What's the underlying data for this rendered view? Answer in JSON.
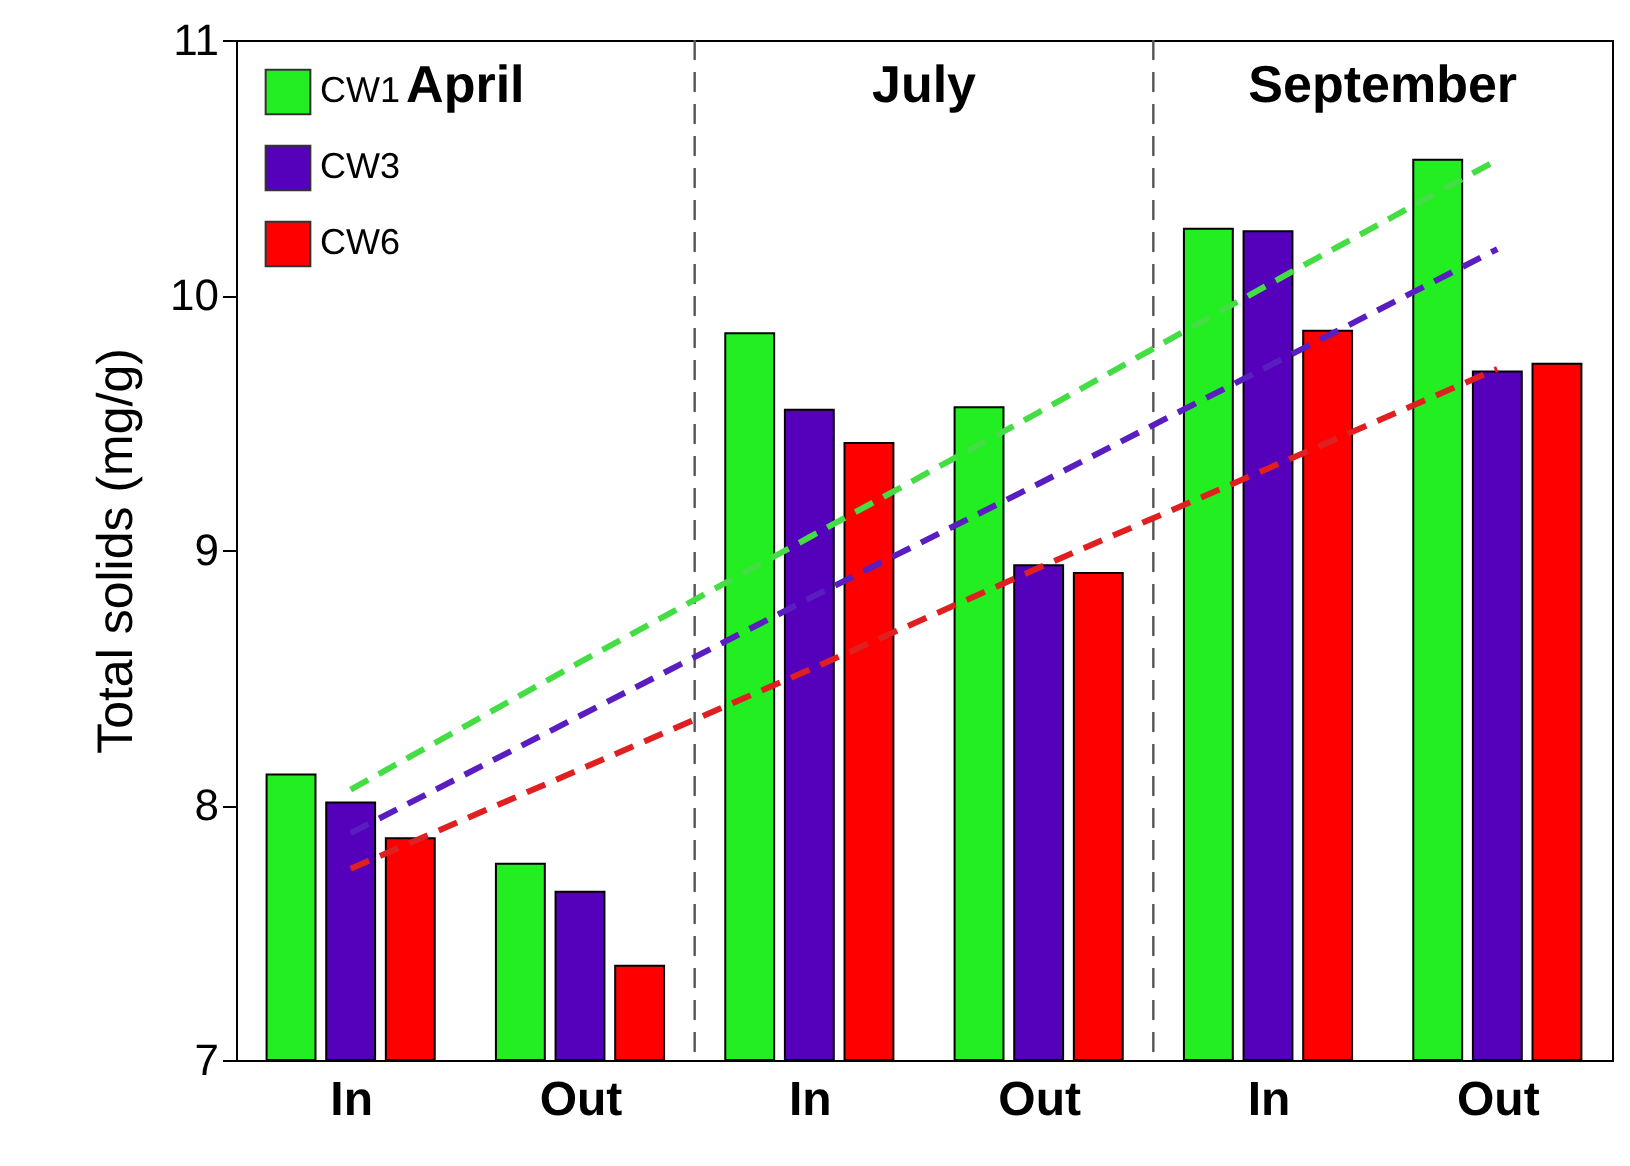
{
  "chart_data": {
    "type": "bar",
    "ylabel": "Total solids (mg/g)",
    "categories": [
      "In",
      "Out",
      "In",
      "Out",
      "In",
      "Out"
    ],
    "series": [
      {
        "name": "CW1",
        "color": "#22ee22",
        "values": [
          8.12,
          7.77,
          9.85,
          9.56,
          10.26,
          10.53
        ]
      },
      {
        "name": "CW3",
        "color": "#5500bb",
        "values": [
          8.01,
          7.66,
          9.55,
          8.94,
          10.25,
          9.7
        ]
      },
      {
        "name": "CW6",
        "color": "#ff0000",
        "values": [
          7.87,
          7.37,
          9.42,
          8.91,
          9.86,
          9.73
        ]
      },
      {
        "type": "line",
        "color": "#44dd44",
        "line_style": "dashed",
        "values": [
          8.06,
          8.56,
          9.05,
          9.54,
          10.04,
          10.53
        ]
      },
      {
        "type": "line",
        "color": "#5a1ec0",
        "line_style": "dashed",
        "values": [
          7.89,
          8.35,
          8.81,
          9.26,
          9.72,
          10.18
        ]
      },
      {
        "type": "line",
        "color": "#e02020",
        "line_style": "dashed",
        "values": [
          7.75,
          8.14,
          8.53,
          8.93,
          9.32,
          9.71
        ]
      }
    ],
    "annotations": [
      "April",
      "July",
      "September"
    ],
    "ylim": [
      7,
      11
    ],
    "yticks": [
      7,
      8,
      9,
      10,
      11
    ],
    "grid": false,
    "legend": "top left"
  }
}
